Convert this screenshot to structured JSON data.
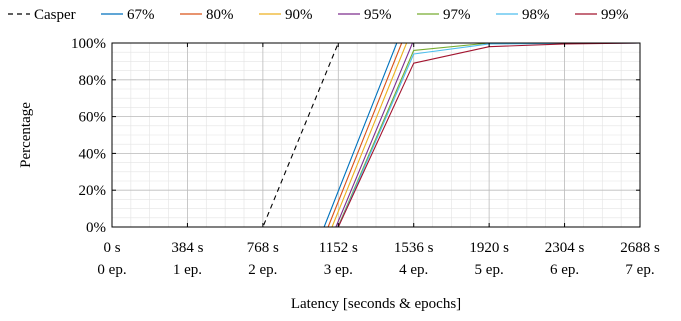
{
  "chart_data": {
    "type": "line",
    "xlabel": "Latency [seconds & epochs]",
    "ylabel": "Percentage",
    "xlim": [
      0,
      2688
    ],
    "ylim": [
      0,
      100
    ],
    "x_ticks": [
      {
        "value": 0,
        "label": "0 s",
        "sublabel": "0 ep."
      },
      {
        "value": 384,
        "label": "384 s",
        "sublabel": "1 ep."
      },
      {
        "value": 768,
        "label": "768 s",
        "sublabel": "2 ep."
      },
      {
        "value": 1152,
        "label": "1152 s",
        "sublabel": "3 ep."
      },
      {
        "value": 1536,
        "label": "1536 s",
        "sublabel": "4 ep."
      },
      {
        "value": 1920,
        "label": "1920 s",
        "sublabel": "5 ep."
      },
      {
        "value": 2304,
        "label": "2304 s",
        "sublabel": "6 ep."
      },
      {
        "value": 2688,
        "label": "2688 s",
        "sublabel": "7 ep."
      }
    ],
    "y_ticks": [
      {
        "value": 0,
        "label": "0%"
      },
      {
        "value": 20,
        "label": "20%"
      },
      {
        "value": 40,
        "label": "40%"
      },
      {
        "value": 60,
        "label": "60%"
      },
      {
        "value": 80,
        "label": "80%"
      },
      {
        "value": 100,
        "label": "100%"
      }
    ],
    "grid": true,
    "legend_position": "top",
    "series": [
      {
        "name": "Casper",
        "color": "#000000",
        "dashed": true,
        "points": [
          [
            0,
            0
          ],
          [
            768,
            0
          ],
          [
            1152,
            100
          ],
          [
            1536,
            100
          ]
        ]
      },
      {
        "name": "67%",
        "color": "#0072bd",
        "dashed": false,
        "points": [
          [
            0,
            0
          ],
          [
            1080,
            0
          ],
          [
            1450,
            100
          ],
          [
            2688,
            100
          ]
        ]
      },
      {
        "name": "80%",
        "color": "#d95319",
        "dashed": false,
        "points": [
          [
            0,
            0
          ],
          [
            1100,
            0
          ],
          [
            1475,
            100
          ],
          [
            2688,
            100
          ]
        ]
      },
      {
        "name": "90%",
        "color": "#edb120",
        "dashed": false,
        "points": [
          [
            0,
            0
          ],
          [
            1120,
            0
          ],
          [
            1500,
            100
          ],
          [
            2688,
            100
          ]
        ]
      },
      {
        "name": "95%",
        "color": "#7e2f8e",
        "dashed": false,
        "points": [
          [
            0,
            0
          ],
          [
            1140,
            0
          ],
          [
            1530,
            100
          ],
          [
            2688,
            100
          ]
        ]
      },
      {
        "name": "97%",
        "color": "#77ac30",
        "dashed": false,
        "points": [
          [
            0,
            0
          ],
          [
            1150,
            0
          ],
          [
            1536,
            96
          ],
          [
            1920,
            100
          ],
          [
            2688,
            100
          ]
        ]
      },
      {
        "name": "98%",
        "color": "#4dbeee",
        "dashed": false,
        "points": [
          [
            0,
            0
          ],
          [
            1152,
            0
          ],
          [
            1536,
            94
          ],
          [
            1920,
            99.5
          ],
          [
            2688,
            100
          ]
        ]
      },
      {
        "name": "99%",
        "color": "#a2142f",
        "dashed": false,
        "points": [
          [
            0,
            0
          ],
          [
            1152,
            0
          ],
          [
            1536,
            89
          ],
          [
            1920,
            98
          ],
          [
            2304,
            99.5
          ],
          [
            2688,
            100
          ]
        ]
      }
    ]
  }
}
